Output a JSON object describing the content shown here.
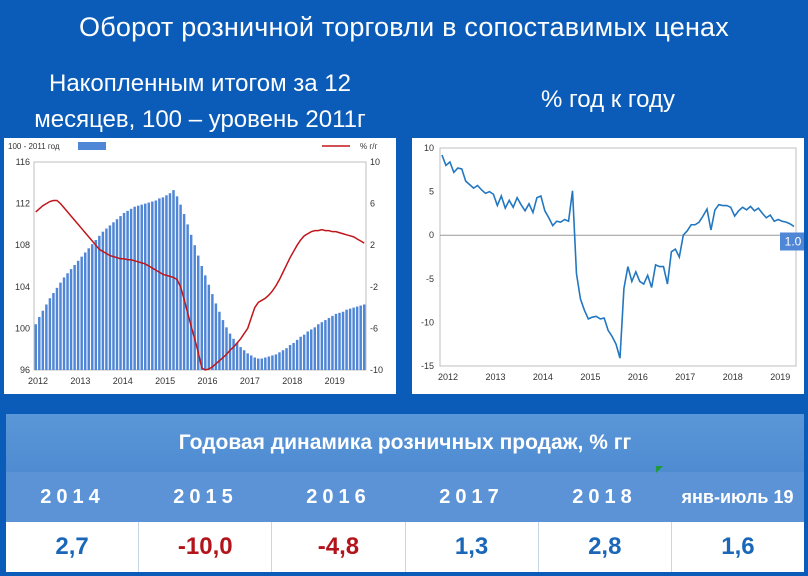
{
  "header": {
    "title": "Оборот розничной торговли в сопоставимых ценах",
    "left_title": "Накопленным итогом за 12 месяцев, 100 – уровень 2011г",
    "right_title": "% год к году"
  },
  "colors": {
    "background": "#0b5cb8",
    "bars": "#4f86d6",
    "red_line": "#c0161b",
    "blue_line": "#2277c0",
    "value_blue": "#1a66b8",
    "value_red": "#b3141c"
  },
  "chart_data": [
    {
      "type": "bar+line",
      "legend": [
        {
          "name": "100 - 2011 год",
          "kind": "bar"
        },
        {
          "name": "% г/г",
          "kind": "line"
        }
      ],
      "x_labels": [
        "2012",
        "2013",
        "2014",
        "2015",
        "2016",
        "2017",
        "2018",
        "2019"
      ],
      "y_left": {
        "ticks": [
          96,
          100,
          104,
          108,
          112,
          116
        ],
        "range": [
          96,
          116
        ]
      },
      "y_right": {
        "ticks": [
          -10,
          -6,
          -2,
          2,
          6,
          10
        ],
        "range": [
          -10,
          10
        ]
      },
      "bars": [
        100.4,
        101.1,
        101.7,
        102.3,
        102.9,
        103.4,
        103.9,
        104.4,
        104.9,
        105.3,
        105.7,
        106.1,
        106.5,
        106.9,
        107.3,
        107.7,
        108.1,
        108.5,
        108.9,
        109.3,
        109.6,
        109.9,
        110.2,
        110.5,
        110.8,
        111.1,
        111.3,
        111.5,
        111.7,
        111.8,
        111.9,
        112.0,
        112.1,
        112.2,
        112.3,
        112.5,
        112.6,
        112.8,
        113.0,
        113.3,
        112.7,
        111.9,
        111.0,
        110.0,
        109.0,
        108.0,
        107.0,
        106.0,
        105.1,
        104.2,
        103.3,
        102.4,
        101.6,
        100.8,
        100.1,
        99.5,
        99.0,
        98.6,
        98.2,
        97.9,
        97.6,
        97.4,
        97.2,
        97.1,
        97.1,
        97.2,
        97.3,
        97.4,
        97.5,
        97.7,
        97.9,
        98.1,
        98.4,
        98.6,
        98.9,
        99.2,
        99.4,
        99.7,
        99.9,
        100.1,
        100.4,
        100.6,
        100.8,
        101.0,
        101.2,
        101.4,
        101.5,
        101.6,
        101.8,
        101.9,
        102.0,
        102.1,
        102.2,
        102.3
      ],
      "line": [
        5.2,
        5.5,
        5.8,
        6.0,
        6.2,
        6.3,
        6.3,
        6.0,
        5.6,
        5.2,
        4.8,
        4.4,
        4.0,
        3.6,
        3.2,
        2.8,
        2.4,
        2.0,
        1.6,
        1.4,
        1.2,
        1.0,
        0.9,
        0.8,
        0.7,
        0.7,
        0.6,
        0.6,
        0.5,
        0.4,
        0.3,
        0.2,
        0.0,
        -0.2,
        -0.4,
        -0.6,
        -0.8,
        -0.9,
        -1.0,
        -1.1,
        -1.3,
        -2.0,
        -3.2,
        -4.5,
        -5.8,
        -7.0,
        -8.3,
        -9.8,
        -10.0,
        -9.9,
        -9.7,
        -9.4,
        -9.1,
        -8.8,
        -8.5,
        -8.1,
        -7.8,
        -7.4,
        -7.0,
        -6.5,
        -6.0,
        -5.0,
        -4.0,
        -3.5,
        -3.3,
        -3.1,
        -2.8,
        -2.4,
        -1.9,
        -1.3,
        -0.6,
        0.1,
        0.8,
        1.4,
        2.0,
        2.5,
        2.9,
        3.1,
        3.3,
        3.4,
        3.4,
        3.5,
        3.4,
        3.4,
        3.3,
        3.3,
        3.2,
        3.1,
        3.0,
        2.9,
        2.8,
        2.6,
        2.4,
        2.2
      ]
    },
    {
      "type": "line",
      "x_labels": [
        "2012",
        "2013",
        "2014",
        "2015",
        "2016",
        "2017",
        "2018",
        "2019"
      ],
      "y": {
        "ticks": [
          10,
          5,
          0,
          -5,
          -10,
          -15
        ],
        "range": [
          -15,
          10
        ]
      },
      "values": [
        9.2,
        8.0,
        8.4,
        7.2,
        7.7,
        7.6,
        6.2,
        5.8,
        5.4,
        5.7,
        5.2,
        4.8,
        5.0,
        4.7,
        3.4,
        4.5,
        3.1,
        4.0,
        3.2,
        4.3,
        3.5,
        2.8,
        3.6,
        2.6,
        4.3,
        4.5,
        2.8,
        2.0,
        1.1,
        1.6,
        1.5,
        1.8,
        1.6,
        5.1,
        -4.4,
        -7.3,
        -8.6,
        -9.6,
        -9.4,
        -9.3,
        -9.6,
        -9.5,
        -10.9,
        -11.6,
        -12.5,
        -14.1,
        -6.1,
        -3.6,
        -5.3,
        -4.2,
        -5.3,
        -5.6,
        -4.6,
        -6.0,
        -3.4,
        -3.6,
        -3.6,
        -5.6,
        -1.9,
        -1.6,
        -2.5,
        0.0,
        0.5,
        1.2,
        1.2,
        1.5,
        2.2,
        3.0,
        0.6,
        2.9,
        3.5,
        3.4,
        3.4,
        3.2,
        2.2,
        2.8,
        3.2,
        2.9,
        3.3,
        2.8,
        3.1,
        2.5,
        2.0,
        2.3,
        1.6,
        1.8,
        1.6,
        1.5,
        1.3,
        1.0
      ],
      "last_value_label": "1.0"
    }
  ],
  "table": {
    "title": "Годовая динамика розничных продаж, % гг",
    "years": [
      "2014",
      "2015",
      "2016",
      "2017",
      "2018",
      "янв-июль 19"
    ],
    "values": [
      "2,7",
      "-10,0",
      "-4,8",
      "1,3",
      "2,8",
      "1,6"
    ]
  }
}
